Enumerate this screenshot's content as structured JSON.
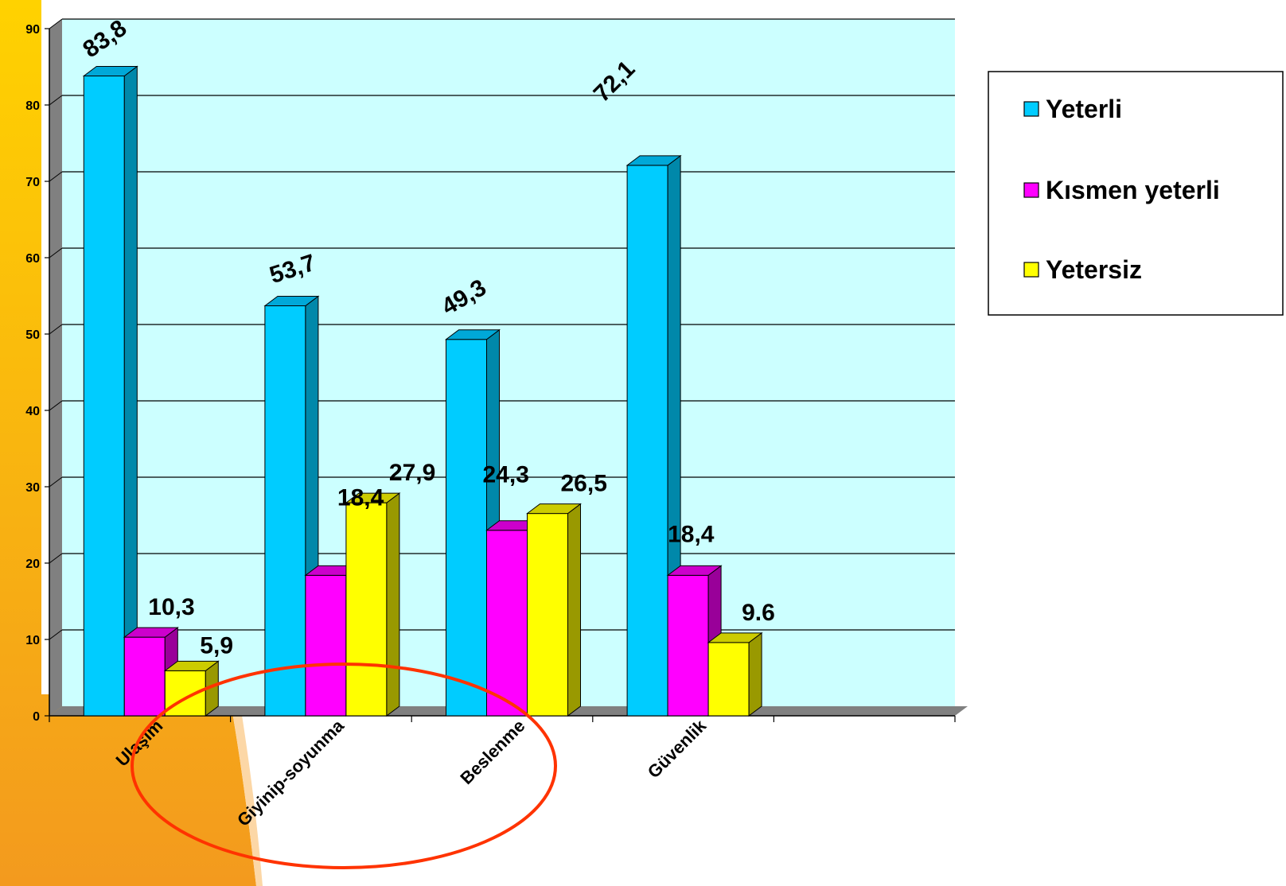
{
  "chart_data": {
    "type": "bar",
    "categories": [
      "Ulaşım",
      "Giyinip-soyunma",
      "Beslenme",
      "Güvenlik"
    ],
    "series": [
      {
        "name": "Yeterli",
        "values": [
          83.8,
          53.7,
          49.3,
          72.1
        ],
        "labels": [
          "83,8",
          "53,7",
          "49,3",
          "72,1"
        ],
        "color": "#00CCFF",
        "side_color": "#0088AA",
        "top_color": "#00A8D8"
      },
      {
        "name": "Kısmen yeterli",
        "values": [
          10.3,
          18.4,
          24.3,
          18.4
        ],
        "labels": [
          "10,3",
          "18,4",
          "24,3",
          "18,4"
        ],
        "color": "#FF00FF",
        "side_color": "#990099",
        "top_color": "#CC00CC"
      },
      {
        "name": "Yetersiz",
        "values": [
          5.9,
          27.9,
          26.5,
          9.6
        ],
        "labels": [
          "5,9",
          "27,9",
          "26,5",
          "9.6"
        ],
        "color": "#FFFF00",
        "side_color": "#999900",
        "top_color": "#CCCC00"
      }
    ],
    "yticks": [
      "0",
      "10",
      "20",
      "30",
      "40",
      "50",
      "60",
      "70",
      "80",
      "90"
    ],
    "ylim": [
      0,
      90
    ],
    "grid": true,
    "legend_position": "right",
    "plot_background": "#CCFFFF",
    "wall_color": "#808080",
    "highlight_ellipse_color": "#FF3300",
    "decor_gradient": [
      "#FFD200",
      "#F39A1E"
    ]
  }
}
